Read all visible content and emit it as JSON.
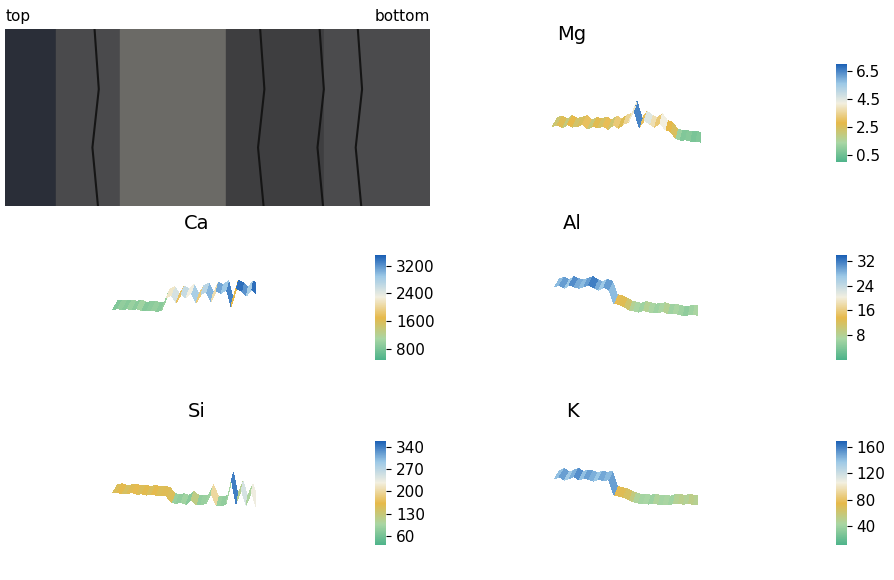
{
  "photo": {
    "labels": [
      "top",
      "bottom"
    ]
  },
  "chart_data": [
    {
      "type": "surface",
      "title": "Mg",
      "tick_labels": false,
      "values": [
        2.2,
        2.6,
        2.0,
        2.8,
        2.3,
        2.5,
        3.0,
        2.1,
        2.7,
        2.4,
        2.9,
        2.2,
        3.2,
        2.6,
        3.5,
        4.0,
        6.5,
        3.0,
        4.5,
        3.8,
        3.2,
        4.2,
        2.8,
        2.5,
        1.2,
        0.8,
        0.9,
        0.7,
        0.8,
        0.6
      ],
      "colorbar_range": [
        0,
        7
      ],
      "colorbar_ticks": [
        0.5,
        2.5,
        4.5,
        6.5
      ]
    },
    {
      "type": "surface",
      "title": "Ca",
      "tick_labels": false,
      "values": [
        850,
        950,
        880,
        1000,
        900,
        1050,
        870,
        920,
        980,
        900,
        1000,
        2200,
        2500,
        1800,
        2600,
        2300,
        2800,
        1900,
        2700,
        3000,
        2100,
        3100,
        2900,
        3300,
        1700,
        3400,
        3200,
        2800,
        3400,
        3000
      ],
      "colorbar_range": [
        500,
        3500
      ],
      "colorbar_ticks": [
        800,
        1600,
        2400,
        3200
      ]
    },
    {
      "type": "surface",
      "title": "Al",
      "tick_labels": false,
      "values": [
        28,
        30,
        27,
        31,
        29,
        28,
        30,
        32,
        29,
        27,
        30,
        28,
        14,
        13,
        11,
        8,
        7,
        6,
        8,
        7,
        6,
        7,
        8,
        6,
        7,
        6,
        5,
        6,
        7,
        6
      ],
      "colorbar_range": [
        0,
        34
      ],
      "colorbar_ticks": [
        8,
        16,
        24,
        32
      ]
    },
    {
      "type": "surface",
      "title": "Si",
      "tick_labels": false,
      "values": [
        150,
        160,
        145,
        155,
        165,
        150,
        158,
        148,
        160,
        152,
        155,
        150,
        85,
        80,
        90,
        75,
        120,
        80,
        85,
        90,
        200,
        85,
        80,
        95,
        340,
        110,
        250,
        100,
        230,
        90
      ],
      "colorbar_range": [
        30,
        360
      ],
      "colorbar_ticks": [
        60,
        130,
        200,
        270,
        340
      ]
    },
    {
      "type": "surface",
      "title": "K",
      "tick_labels": false,
      "values": [
        140,
        150,
        135,
        145,
        155,
        140,
        150,
        145,
        138,
        148,
        142,
        150,
        75,
        70,
        65,
        55,
        45,
        40,
        42,
        38,
        45,
        40,
        43,
        39,
        48,
        50,
        47,
        52,
        49,
        50
      ],
      "colorbar_range": [
        10,
        170
      ],
      "colorbar_ticks": [
        40,
        80,
        120,
        160
      ]
    }
  ]
}
